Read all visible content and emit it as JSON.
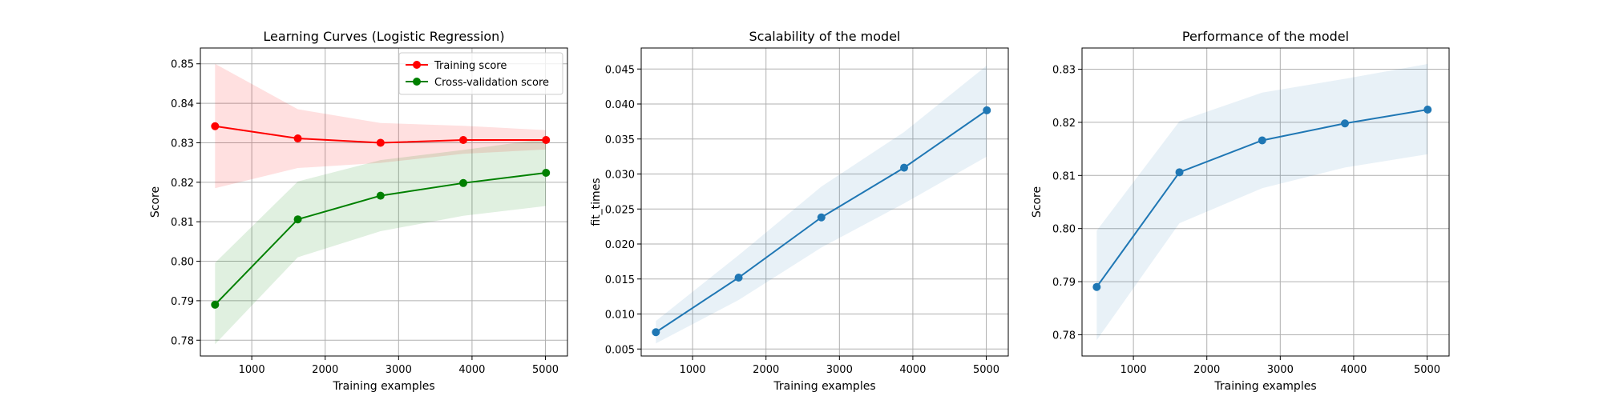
{
  "figure": {
    "background": "#ffffff"
  },
  "chart_data": [
    {
      "type": "line",
      "title": "Learning Curves (Logistic Regression)",
      "xlabel": "Training examples",
      "ylabel": "Score",
      "xlim": [
        300,
        5300
      ],
      "ylim": [
        0.776,
        0.854
      ],
      "xticks": [
        1000,
        2000,
        3000,
        4000,
        5000
      ],
      "xtick_labels": [
        "1000",
        "2000",
        "3000",
        "4000",
        "5000"
      ],
      "yticks": [
        0.78,
        0.79,
        0.8,
        0.81,
        0.82,
        0.83,
        0.84,
        0.85
      ],
      "ytick_labels": [
        "0.78",
        "0.79",
        "0.80",
        "0.81",
        "0.82",
        "0.83",
        "0.84",
        "0.85"
      ],
      "grid": true,
      "legend": "upper-right",
      "x": [
        500,
        1627,
        2754,
        3881,
        5008
      ],
      "series": [
        {
          "name": "Training score",
          "color": "#ff0000",
          "band_color": "#ff0000",
          "values": [
            0.8342,
            0.8311,
            0.83,
            0.8307,
            0.8307
          ],
          "lower": [
            0.8185,
            0.8236,
            0.8249,
            0.8272,
            0.8283
          ],
          "upper": [
            0.85,
            0.8385,
            0.835,
            0.8343,
            0.8332
          ]
        },
        {
          "name": "Cross-validation score",
          "color": "#008000",
          "band_color": "#008000",
          "values": [
            0.789,
            0.8106,
            0.8166,
            0.8198,
            0.8224
          ],
          "lower": [
            0.779,
            0.801,
            0.8076,
            0.8115,
            0.814
          ],
          "upper": [
            0.7996,
            0.8202,
            0.8256,
            0.8282,
            0.831
          ]
        }
      ]
    },
    {
      "type": "line",
      "title": "Scalability of the model",
      "xlabel": "Training examples",
      "ylabel": "fit_times",
      "xlim": [
        300,
        5300
      ],
      "ylim": [
        0.004,
        0.048
      ],
      "xticks": [
        1000,
        2000,
        3000,
        4000,
        5000
      ],
      "xtick_labels": [
        "1000",
        "2000",
        "3000",
        "4000",
        "5000"
      ],
      "yticks": [
        0.005,
        0.01,
        0.015,
        0.02,
        0.025,
        0.03,
        0.035,
        0.04,
        0.045
      ],
      "ytick_labels": [
        "0.005",
        "0.010",
        "0.015",
        "0.020",
        "0.025",
        "0.030",
        "0.035",
        "0.040",
        "0.045"
      ],
      "grid": true,
      "x": [
        500,
        1627,
        2754,
        3881,
        5008
      ],
      "series": [
        {
          "color": "#1f77b4",
          "band_color": "#1f77b4",
          "values": [
            0.0074,
            0.0152,
            0.0238,
            0.0309,
            0.0391
          ],
          "lower": [
            0.0058,
            0.012,
            0.0195,
            0.0258,
            0.0325
          ],
          "upper": [
            0.009,
            0.0184,
            0.0282,
            0.036,
            0.0455
          ]
        }
      ]
    },
    {
      "type": "line",
      "title": "Performance of the model",
      "xlabel": "Training examples",
      "ylabel": "Score",
      "xlim": [
        300,
        5300
      ],
      "ylim": [
        0.776,
        0.834
      ],
      "xticks": [
        1000,
        2000,
        3000,
        4000,
        5000
      ],
      "xtick_labels": [
        "1000",
        "2000",
        "3000",
        "4000",
        "5000"
      ],
      "yticks": [
        0.78,
        0.79,
        0.8,
        0.81,
        0.82,
        0.83
      ],
      "ytick_labels": [
        "0.78",
        "0.79",
        "0.80",
        "0.81",
        "0.82",
        "0.83"
      ],
      "grid": true,
      "x": [
        500,
        1627,
        2754,
        3881,
        5008
      ],
      "series": [
        {
          "color": "#1f77b4",
          "band_color": "#1f77b4",
          "values": [
            0.789,
            0.8106,
            0.8166,
            0.8198,
            0.8224
          ],
          "lower": [
            0.779,
            0.801,
            0.8076,
            0.8115,
            0.814
          ],
          "upper": [
            0.7996,
            0.8202,
            0.8256,
            0.8282,
            0.831
          ]
        }
      ]
    }
  ]
}
